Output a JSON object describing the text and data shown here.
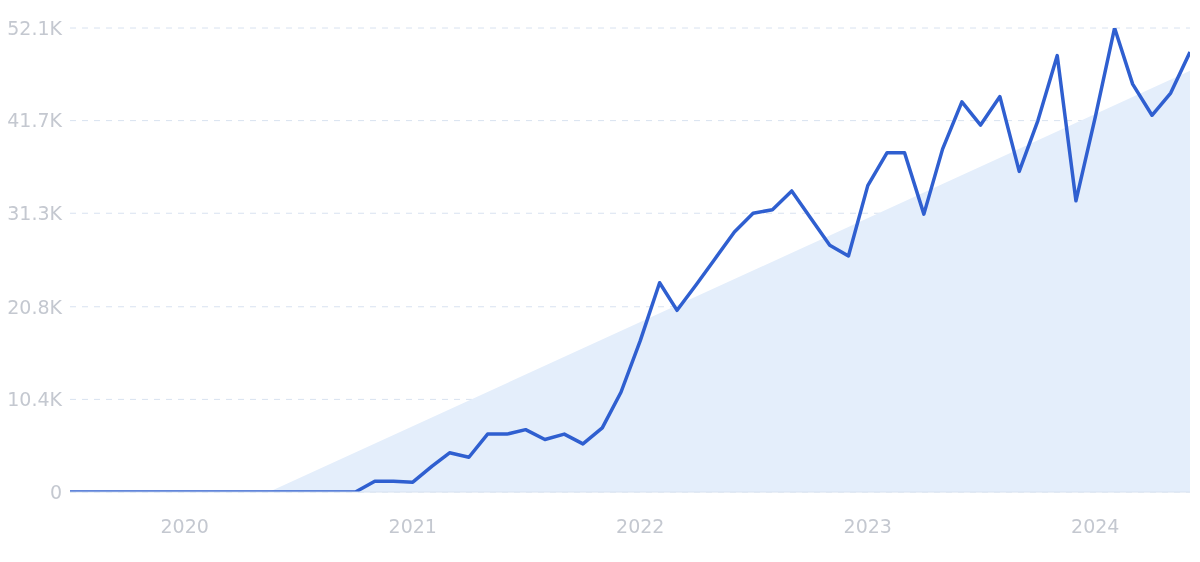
{
  "chart_data": {
    "type": "line",
    "x": [
      "2019-07",
      "2019-08",
      "2019-09",
      "2019-10",
      "2019-11",
      "2019-12",
      "2020-01",
      "2020-02",
      "2020-03",
      "2020-04",
      "2020-05",
      "2020-06",
      "2020-07",
      "2020-08",
      "2020-09",
      "2020-10",
      "2020-11",
      "2020-12",
      "2021-01",
      "2021-02",
      "2021-03",
      "2021-04",
      "2021-05",
      "2021-06",
      "2021-07",
      "2021-08",
      "2021-09",
      "2021-10",
      "2021-11",
      "2021-12",
      "2022-01",
      "2022-02",
      "2022-03",
      "2022-04",
      "2022-05",
      "2022-06",
      "2022-07",
      "2022-08",
      "2022-09",
      "2022-10",
      "2022-11",
      "2022-12",
      "2023-01",
      "2023-02",
      "2023-03",
      "2023-04",
      "2023-05",
      "2023-06",
      "2023-07",
      "2023-08",
      "2023-09",
      "2023-10",
      "2023-11",
      "2023-12",
      "2024-01",
      "2024-02",
      "2024-03",
      "2024-04",
      "2024-05",
      "2024-06"
    ],
    "series": [
      {
        "type": "area",
        "color": "#e4eefb",
        "x": [
          "2020-05-15",
          "2024-06"
        ],
        "values": [
          0,
          47300
        ]
      },
      {
        "color": "#2f5fd0",
        "values": [
          0,
          0,
          0,
          0,
          0,
          0,
          0,
          0,
          0,
          0,
          0,
          0,
          0,
          0,
          0,
          0,
          1200,
          1200,
          1100,
          2900,
          4400,
          3900,
          6500,
          6500,
          7000,
          5900,
          6500,
          5400,
          7200,
          11200,
          17000,
          23500,
          20400,
          23300,
          26200,
          29200,
          31300,
          31700,
          33800,
          30800,
          27700,
          26500,
          34400,
          38100,
          38100,
          31200,
          38500,
          43800,
          41200,
          44400,
          36000,
          41700,
          49000,
          32700,
          42100,
          52100,
          45800,
          42300,
          44800,
          49400
        ]
      }
    ],
    "xlim": [
      "2019-07",
      "2024-06"
    ],
    "xticks": [
      {
        "value": "2020-01",
        "label": "2020"
      },
      {
        "value": "2021-01",
        "label": "2021"
      },
      {
        "value": "2022-01",
        "label": "2022"
      },
      {
        "value": "2023-01",
        "label": "2023"
      },
      {
        "value": "2024-01",
        "label": "2024"
      }
    ],
    "ylim": [
      0,
      52100
    ],
    "yticks": [
      0,
      {
        "value": 10400,
        "label": "10.4K"
      },
      {
        "value": 20800,
        "label": "20.8K"
      },
      {
        "value": 31300,
        "label": "31.3K"
      },
      {
        "value": 41700,
        "label": "41.7K"
      },
      {
        "value": 52100,
        "label": "52.1K"
      }
    ],
    "grid": "y",
    "line_style": "solid",
    "marker": "none"
  }
}
